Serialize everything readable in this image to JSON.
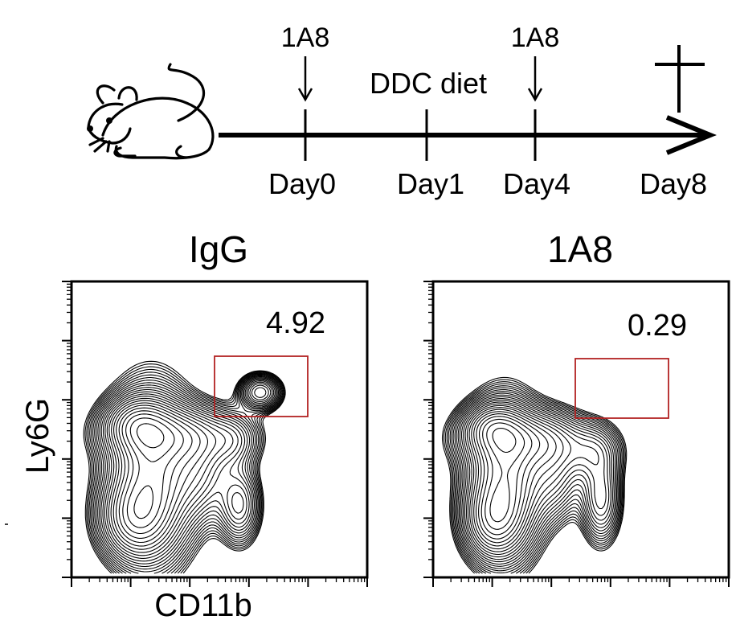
{
  "timeline": {
    "treatment_label": "1A8",
    "diet_label": "DDC diet",
    "days": [
      "Day0",
      "Day1",
      "Day4",
      "Day8"
    ],
    "death_marker": "cross-icon"
  },
  "panels": [
    {
      "title": "IgG",
      "gate_value": "4.92"
    },
    {
      "title": "1A8",
      "gate_value": "0.29"
    }
  ],
  "axes": {
    "x_label": "CD11b",
    "y_label": "Ly6G"
  },
  "colors": {
    "gate": "#b22222",
    "ink": "#000000"
  }
}
